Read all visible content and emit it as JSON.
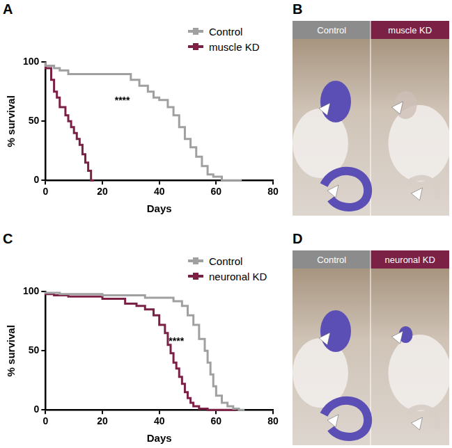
{
  "chart_data": [
    {
      "type": "line",
      "title": "A",
      "line_style": "steps",
      "x_label": "Days",
      "y_label": "% survival",
      "xlim": [
        0,
        80
      ],
      "xticks": [
        0,
        20,
        40,
        60,
        80
      ],
      "ylim": [
        0,
        100
      ],
      "yticks": [
        0,
        50,
        100
      ],
      "grid": false,
      "legend": "right",
      "annotations": [
        {
          "text": "****",
          "x": 27,
          "y": 67
        }
      ],
      "series": [
        {
          "name": "Control",
          "color": "#a0a0a0",
          "x": [
            0,
            3,
            5,
            8,
            30,
            33,
            36,
            38,
            40,
            43,
            45,
            47,
            49,
            51,
            53,
            55,
            57,
            59,
            62,
            69
          ],
          "values": [
            100,
            97,
            95,
            93,
            90,
            85,
            80,
            75,
            70,
            68,
            62,
            55,
            45,
            35,
            28,
            20,
            12,
            5,
            3,
            0
          ]
        },
        {
          "name": "muscle KD",
          "color": "#7b2146",
          "x": [
            0,
            2,
            3,
            4,
            5,
            7,
            8,
            9,
            10,
            11,
            12,
            13,
            14,
            15,
            16,
            17
          ],
          "values": [
            100,
            95,
            85,
            75,
            70,
            62,
            55,
            50,
            45,
            40,
            35,
            30,
            22,
            15,
            8,
            0
          ]
        }
      ]
    },
    {
      "type": "line",
      "title": "C",
      "line_style": "steps",
      "x_label": "Days",
      "y_label": "% survival",
      "xlim": [
        0,
        80
      ],
      "xticks": [
        0,
        20,
        40,
        60,
        80
      ],
      "ylim": [
        0,
        100
      ],
      "yticks": [
        0,
        50,
        100
      ],
      "grid": false,
      "legend": "right",
      "annotations": [
        {
          "text": "****",
          "x": 46,
          "y": 58
        }
      ],
      "series": [
        {
          "name": "Control",
          "color": "#a0a0a0",
          "x": [
            0,
            5,
            20,
            35,
            45,
            48,
            50,
            52,
            54,
            56,
            57,
            58,
            59,
            60,
            62,
            64,
            66,
            68,
            70
          ],
          "values": [
            100,
            99,
            98,
            97,
            95,
            92,
            88,
            80,
            72,
            60,
            50,
            40,
            30,
            20,
            12,
            6,
            3,
            1,
            0
          ]
        },
        {
          "name": "neuronal KD",
          "color": "#7b2146",
          "x": [
            0,
            3,
            8,
            20,
            28,
            32,
            35,
            38,
            40,
            42,
            43,
            44,
            45,
            46,
            47,
            48,
            49,
            50,
            51,
            52,
            54,
            57,
            67
          ],
          "values": [
            100,
            98,
            97,
            96,
            94,
            90,
            88,
            85,
            80,
            72,
            65,
            55,
            48,
            40,
            35,
            28,
            22,
            15,
            10,
            6,
            3,
            1,
            0
          ]
        }
      ]
    }
  ],
  "images": [
    {
      "title": "B",
      "labels": [
        "Control",
        "muscle KD"
      ]
    },
    {
      "title": "D",
      "labels": [
        "Control",
        "neuronal KD"
      ]
    }
  ]
}
